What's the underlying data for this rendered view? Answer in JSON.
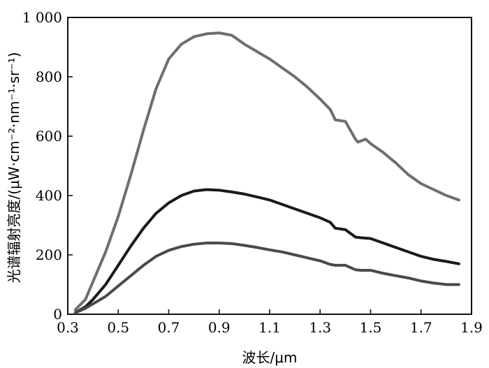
{
  "chart_data": {
    "type": "line",
    "xlabel": "波长/μm",
    "ylabel": "光谱辐射亮度/(μW·cm⁻²·nm⁻¹·sr⁻¹)",
    "xlim": [
      0.3,
      1.9
    ],
    "ylim": [
      0,
      1000
    ],
    "xticks": [
      "0.3",
      "0.5",
      "0.7",
      "0.9",
      "1.1",
      "1.3",
      "1.5",
      "1.7",
      "1.9"
    ],
    "yticks": [
      "0",
      "200",
      "400",
      "600",
      "800",
      "1 000"
    ],
    "grid": false,
    "series": [
      {
        "color": "#6e6e6e",
        "points": [
          [
            0.33,
            15
          ],
          [
            0.37,
            50
          ],
          [
            0.4,
            110
          ],
          [
            0.45,
            210
          ],
          [
            0.5,
            330
          ],
          [
            0.55,
            470
          ],
          [
            0.6,
            620
          ],
          [
            0.65,
            760
          ],
          [
            0.7,
            860
          ],
          [
            0.75,
            910
          ],
          [
            0.8,
            935
          ],
          [
            0.85,
            945
          ],
          [
            0.9,
            948
          ],
          [
            0.95,
            940
          ],
          [
            1.0,
            910
          ],
          [
            1.05,
            885
          ],
          [
            1.1,
            860
          ],
          [
            1.15,
            830
          ],
          [
            1.2,
            800
          ],
          [
            1.25,
            765
          ],
          [
            1.3,
            725
          ],
          [
            1.34,
            690
          ],
          [
            1.36,
            655
          ],
          [
            1.4,
            650
          ],
          [
            1.44,
            590
          ],
          [
            1.45,
            580
          ],
          [
            1.48,
            590
          ],
          [
            1.5,
            575
          ],
          [
            1.55,
            545
          ],
          [
            1.6,
            510
          ],
          [
            1.65,
            470
          ],
          [
            1.7,
            440
          ],
          [
            1.75,
            420
          ],
          [
            1.8,
            400
          ],
          [
            1.85,
            385
          ]
        ]
      },
      {
        "color": "#1a1a1a",
        "points": [
          [
            0.33,
            5
          ],
          [
            0.37,
            25
          ],
          [
            0.4,
            50
          ],
          [
            0.45,
            100
          ],
          [
            0.5,
            165
          ],
          [
            0.55,
            230
          ],
          [
            0.6,
            290
          ],
          [
            0.65,
            340
          ],
          [
            0.7,
            375
          ],
          [
            0.75,
            400
          ],
          [
            0.8,
            415
          ],
          [
            0.85,
            420
          ],
          [
            0.9,
            418
          ],
          [
            0.95,
            412
          ],
          [
            1.0,
            405
          ],
          [
            1.05,
            395
          ],
          [
            1.1,
            385
          ],
          [
            1.15,
            370
          ],
          [
            1.2,
            355
          ],
          [
            1.25,
            340
          ],
          [
            1.3,
            325
          ],
          [
            1.34,
            310
          ],
          [
            1.36,
            290
          ],
          [
            1.4,
            285
          ],
          [
            1.44,
            260
          ],
          [
            1.46,
            258
          ],
          [
            1.5,
            255
          ],
          [
            1.55,
            240
          ],
          [
            1.6,
            225
          ],
          [
            1.65,
            210
          ],
          [
            1.7,
            195
          ],
          [
            1.75,
            185
          ],
          [
            1.8,
            178
          ],
          [
            1.85,
            170
          ]
        ]
      },
      {
        "color": "#4a4a4a",
        "points": [
          [
            0.33,
            5
          ],
          [
            0.37,
            20
          ],
          [
            0.4,
            35
          ],
          [
            0.45,
            60
          ],
          [
            0.5,
            95
          ],
          [
            0.55,
            130
          ],
          [
            0.6,
            165
          ],
          [
            0.65,
            195
          ],
          [
            0.7,
            215
          ],
          [
            0.75,
            228
          ],
          [
            0.8,
            236
          ],
          [
            0.85,
            240
          ],
          [
            0.9,
            240
          ],
          [
            0.95,
            238
          ],
          [
            1.0,
            232
          ],
          [
            1.05,
            225
          ],
          [
            1.1,
            217
          ],
          [
            1.15,
            210
          ],
          [
            1.2,
            200
          ],
          [
            1.25,
            190
          ],
          [
            1.3,
            180
          ],
          [
            1.34,
            168
          ],
          [
            1.36,
            165
          ],
          [
            1.4,
            165
          ],
          [
            1.44,
            150
          ],
          [
            1.46,
            148
          ],
          [
            1.5,
            148
          ],
          [
            1.55,
            138
          ],
          [
            1.6,
            130
          ],
          [
            1.65,
            122
          ],
          [
            1.7,
            112
          ],
          [
            1.75,
            105
          ],
          [
            1.8,
            100
          ],
          [
            1.85,
            100
          ]
        ]
      }
    ]
  }
}
